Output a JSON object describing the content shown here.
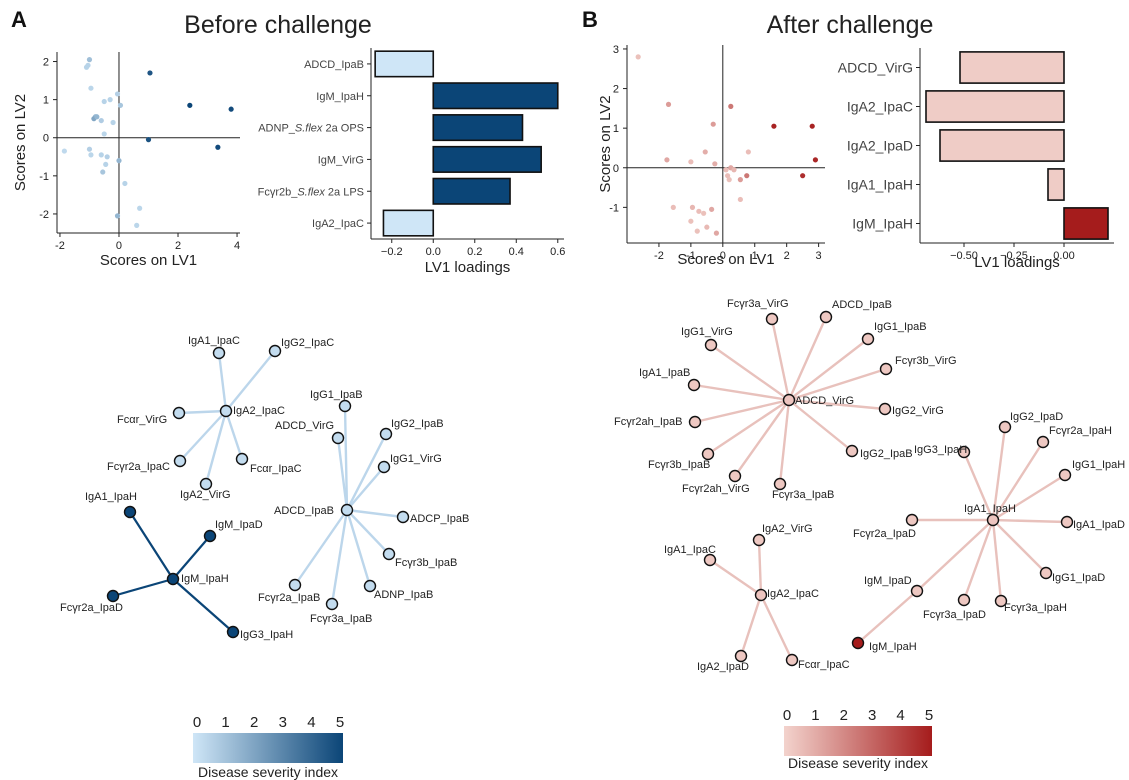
{
  "panels": [
    {
      "letter": "A",
      "title": "Before challenge"
    },
    {
      "letter": "B",
      "title": "After challenge"
    }
  ],
  "chart_data": [
    {
      "id": "scoresA",
      "type": "scatter",
      "panel": "A",
      "xlabel": "Scores on LV1",
      "ylabel": "Scores on LV2",
      "xlim": [
        -2.1,
        4.1
      ],
      "ylim": [
        -2.5,
        2.25
      ],
      "xticks": [
        -2,
        0,
        2,
        4
      ],
      "yticks": [
        -2,
        -1,
        0,
        1,
        2
      ],
      "color_scale": {
        "low": "#cfe6f7",
        "high": "#0b4577",
        "min": 0,
        "max": 5
      },
      "points": [
        {
          "x": -1.0,
          "y": 2.05,
          "s": 1.2
        },
        {
          "x": -1.05,
          "y": 1.9,
          "s": 0.6
        },
        {
          "x": -1.1,
          "y": 1.85,
          "s": 0.6
        },
        {
          "x": -0.95,
          "y": 1.3,
          "s": 0.5
        },
        {
          "x": -0.3,
          "y": 1.0,
          "s": 0.6
        },
        {
          "x": -0.5,
          "y": 0.95,
          "s": 0.6
        },
        {
          "x": -0.05,
          "y": 1.15,
          "s": 0.7
        },
        {
          "x": 0.05,
          "y": 0.85,
          "s": 1.0
        },
        {
          "x": -0.8,
          "y": 0.55,
          "s": 1.4
        },
        {
          "x": -0.85,
          "y": 0.5,
          "s": 2.0
        },
        {
          "x": -0.75,
          "y": 0.55,
          "s": 1.5
        },
        {
          "x": -0.6,
          "y": 0.45,
          "s": 0.8
        },
        {
          "x": -0.2,
          "y": 0.4,
          "s": 0.6
        },
        {
          "x": -0.5,
          "y": 0.1,
          "s": 0.5
        },
        {
          "x": -1.85,
          "y": -0.35,
          "s": 0.4
        },
        {
          "x": -0.95,
          "y": -0.45,
          "s": 0.5
        },
        {
          "x": -1.0,
          "y": -0.3,
          "s": 0.7
        },
        {
          "x": -0.6,
          "y": -0.45,
          "s": 0.6
        },
        {
          "x": -0.4,
          "y": -0.5,
          "s": 0.7
        },
        {
          "x": -0.45,
          "y": -0.7,
          "s": 0.6
        },
        {
          "x": -0.55,
          "y": -0.9,
          "s": 1.0
        },
        {
          "x": 0.0,
          "y": -0.6,
          "s": 1.5
        },
        {
          "x": 0.2,
          "y": -1.2,
          "s": 0.6
        },
        {
          "x": 0.7,
          "y": -1.85,
          "s": 0.5
        },
        {
          "x": 0.6,
          "y": -2.3,
          "s": 0.5
        },
        {
          "x": -0.05,
          "y": -2.05,
          "s": 1.5
        },
        {
          "x": 1.05,
          "y": 1.7,
          "s": 4.5
        },
        {
          "x": 2.4,
          "y": 0.85,
          "s": 5.0
        },
        {
          "x": 3.8,
          "y": 0.75,
          "s": 4.8
        },
        {
          "x": 3.35,
          "y": -0.25,
          "s": 4.8
        },
        {
          "x": 1.0,
          "y": -0.05,
          "s": 4.6
        }
      ]
    },
    {
      "id": "loadA",
      "type": "bar",
      "panel": "A",
      "orientation": "horizontal",
      "xlabel": "LV1 loadings",
      "xlim": [
        -0.3,
        0.63
      ],
      "xticks": [
        -0.2,
        0.0,
        0.2,
        0.4,
        0.6
      ],
      "xtick_labels": [
        "−0.2",
        "0.0",
        "0.2",
        "0.4",
        "0.6"
      ],
      "categories": [
        {
          "pre": "ADCD_IpaB",
          "em": "",
          "post": ""
        },
        {
          "pre": "IgM_IpaH",
          "em": "",
          "post": ""
        },
        {
          "pre": "ADNP_",
          "em": "S.flex",
          "post": " 2a OPS"
        },
        {
          "pre": "IgM_VirG",
          "em": "",
          "post": ""
        },
        {
          "pre": "Fcγr2b_",
          "em": "S.flex",
          "post": " 2a LPS"
        },
        {
          "pre": "IgA2_IpaC",
          "em": "",
          "post": ""
        }
      ],
      "values": [
        -0.28,
        0.6,
        0.43,
        0.52,
        0.37,
        -0.24
      ],
      "colors": {
        "positive": "#0b4577",
        "negative": "#cfe6f7"
      }
    },
    {
      "id": "scoresB",
      "type": "scatter",
      "panel": "B",
      "xlabel": "Scores on LV1",
      "ylabel": "Scores on LV2",
      "xlim": [
        -3.0,
        3.2
      ],
      "ylim": [
        -1.9,
        3.1
      ],
      "xticks": [
        -2,
        -1,
        0,
        1,
        2,
        3
      ],
      "yticks": [
        -1,
        0,
        1,
        2,
        3
      ],
      "color_scale": {
        "low": "#f3d3cd",
        "high": "#a51c1c",
        "min": 0,
        "max": 5
      },
      "points": [
        {
          "x": -2.65,
          "y": 2.8,
          "s": 0.5
        },
        {
          "x": -1.7,
          "y": 1.6,
          "s": 1.5
        },
        {
          "x": -1.75,
          "y": 0.2,
          "s": 1.2
        },
        {
          "x": -1.0,
          "y": 0.15,
          "s": 0.6
        },
        {
          "x": -0.55,
          "y": 0.4,
          "s": 1.0
        },
        {
          "x": -0.3,
          "y": 1.1,
          "s": 1.5
        },
        {
          "x": 0.25,
          "y": 1.55,
          "s": 2.5
        },
        {
          "x": -0.25,
          "y": 0.1,
          "s": 1.0
        },
        {
          "x": 0.1,
          "y": -0.05,
          "s": 0.6
        },
        {
          "x": 0.15,
          "y": -0.2,
          "s": 0.6
        },
        {
          "x": 0.2,
          "y": -0.3,
          "s": 0.5
        },
        {
          "x": 0.25,
          "y": 0.0,
          "s": 1.2
        },
        {
          "x": 0.35,
          "y": -0.05,
          "s": 0.8
        },
        {
          "x": 0.55,
          "y": -0.3,
          "s": 1.5
        },
        {
          "x": 0.75,
          "y": -0.2,
          "s": 2.5
        },
        {
          "x": 0.8,
          "y": 0.4,
          "s": 0.6
        },
        {
          "x": 0.55,
          "y": -0.8,
          "s": 0.6
        },
        {
          "x": -1.55,
          "y": -1.0,
          "s": 0.6
        },
        {
          "x": -0.95,
          "y": -1.0,
          "s": 0.8
        },
        {
          "x": -0.75,
          "y": -1.1,
          "s": 0.6
        },
        {
          "x": -0.6,
          "y": -1.15,
          "s": 0.5
        },
        {
          "x": -0.35,
          "y": -1.05,
          "s": 1.2
        },
        {
          "x": -1.0,
          "y": -1.35,
          "s": 0.5
        },
        {
          "x": -0.8,
          "y": -1.6,
          "s": 0.5
        },
        {
          "x": -0.5,
          "y": -1.5,
          "s": 0.7
        },
        {
          "x": -0.2,
          "y": -1.65,
          "s": 1.2
        },
        {
          "x": 1.6,
          "y": 1.05,
          "s": 4.8
        },
        {
          "x": 2.8,
          "y": 1.05,
          "s": 4.8
        },
        {
          "x": 2.9,
          "y": 0.2,
          "s": 4.7
        },
        {
          "x": 2.5,
          "y": -0.2,
          "s": 4.5
        }
      ]
    },
    {
      "id": "loadB",
      "type": "bar",
      "panel": "B",
      "orientation": "horizontal",
      "xlabel": "LV1 loadings",
      "xlim": [
        -0.72,
        0.25
      ],
      "xticks": [
        -0.5,
        -0.25,
        0.0
      ],
      "xtick_labels": [
        "−0.50",
        "−0.25",
        "0.00"
      ],
      "categories": [
        {
          "pre": "ADCD_VirG",
          "em": "",
          "post": ""
        },
        {
          "pre": "IgA2_IpaC",
          "em": "",
          "post": ""
        },
        {
          "pre": "IgA2_IpaD",
          "em": "",
          "post": ""
        },
        {
          "pre": "IgA1_IpaH",
          "em": "",
          "post": ""
        },
        {
          "pre": "IgM_IpaH",
          "em": "",
          "post": ""
        }
      ],
      "values": [
        -0.52,
        -0.69,
        -0.62,
        -0.08,
        0.22
      ],
      "colors": {
        "positive": "#a51c1c",
        "negative": "#efccc6"
      }
    },
    {
      "id": "netA",
      "type": "network",
      "panel": "A",
      "nodes": [
        {
          "id": "IgA2_IpaC",
          "s": 0.3
        },
        {
          "id": "IgA1_IpaC",
          "s": 0.3
        },
        {
          "id": "IgG2_IpaC",
          "s": 0.3
        },
        {
          "id": "Fcαr_VirG",
          "s": 0.3
        },
        {
          "id": "Fcγr2a_IpaC",
          "s": 0.3
        },
        {
          "id": "IgA2_VirG",
          "s": 0.3
        },
        {
          "id": "Fcαr_IpaC",
          "s": 0.3
        },
        {
          "id": "ADCD_IpaB",
          "s": 0.3
        },
        {
          "id": "IgG1_IpaB",
          "s": 0.3
        },
        {
          "id": "ADCD_VirG",
          "s": 0.3
        },
        {
          "id": "IgG2_IpaB",
          "s": 0.3
        },
        {
          "id": "IgG1_VirG",
          "s": 0.3
        },
        {
          "id": "ADCP_IpaB",
          "s": 0.3
        },
        {
          "id": "Fcγr3b_IpaB",
          "s": 0.3
        },
        {
          "id": "ADNP_IpaB",
          "s": 0.3
        },
        {
          "id": "Fcγr3a_IpaB",
          "s": 0.3
        },
        {
          "id": "Fcγr2a_IpaB",
          "s": 0.3
        },
        {
          "id": "IgM_IpaH",
          "s": 5.0
        },
        {
          "id": "IgA1_IpaH",
          "s": 5.0
        },
        {
          "id": "IgM_IpaD",
          "s": 5.0
        },
        {
          "id": "Fcγr2a_IpaD",
          "s": 5.0
        },
        {
          "id": "IgG3_IpaH",
          "s": 5.0
        }
      ],
      "edges": [
        [
          "IgA2_IpaC",
          "IgA1_IpaC"
        ],
        [
          "IgA2_IpaC",
          "IgG2_IpaC"
        ],
        [
          "IgA2_IpaC",
          "Fcαr_VirG"
        ],
        [
          "IgA2_IpaC",
          "Fcγr2a_IpaC"
        ],
        [
          "IgA2_IpaC",
          "IgA2_VirG"
        ],
        [
          "IgA2_IpaC",
          "Fcαr_IpaC"
        ],
        [
          "ADCD_IpaB",
          "IgG1_IpaB"
        ],
        [
          "ADCD_IpaB",
          "ADCD_VirG"
        ],
        [
          "ADCD_IpaB",
          "IgG2_IpaB"
        ],
        [
          "ADCD_IpaB",
          "IgG1_VirG"
        ],
        [
          "ADCD_IpaB",
          "ADCP_IpaB"
        ],
        [
          "ADCD_IpaB",
          "Fcγr3b_IpaB"
        ],
        [
          "ADCD_IpaB",
          "ADNP_IpaB"
        ],
        [
          "ADCD_IpaB",
          "Fcγr3a_IpaB"
        ],
        [
          "ADCD_IpaB",
          "Fcγr2a_IpaB"
        ],
        [
          "IgM_IpaH",
          "IgA1_IpaH"
        ],
        [
          "IgM_IpaH",
          "IgM_IpaD"
        ],
        [
          "IgM_IpaH",
          "Fcγr2a_IpaD"
        ],
        [
          "IgM_IpaH",
          "IgG3_IpaH"
        ]
      ],
      "edge_colors": {
        "low": "#c5def1",
        "high": "#0b4577"
      }
    },
    {
      "id": "netB",
      "type": "network",
      "panel": "B",
      "nodes": [
        {
          "id": "ADCD_VirG",
          "s": 0.4
        },
        {
          "id": "Fcγr3a_VirG",
          "s": 0.3
        },
        {
          "id": "ADCD_IpaB",
          "s": 0.3
        },
        {
          "id": "IgG1_VirG",
          "s": 0.3
        },
        {
          "id": "IgG1_IpaB",
          "s": 0.3
        },
        {
          "id": "IgA1_IpaB",
          "s": 0.3
        },
        {
          "id": "Fcγr3b_VirG",
          "s": 0.3
        },
        {
          "id": "Fcγr2ah_IpaB",
          "s": 0.3
        },
        {
          "id": "IgG2_VirG",
          "s": 0.3
        },
        {
          "id": "Fcγr3b_IpaB",
          "s": 0.3
        },
        {
          "id": "IgG2_IpaB",
          "s": 0.3
        },
        {
          "id": "Fcγr2ah_VirG",
          "s": 0.3
        },
        {
          "id": "Fcγr3a_IpaB",
          "s": 0.3
        },
        {
          "id": "IgA1_IpaH",
          "s": 0.4
        },
        {
          "id": "IgG2_IpaD",
          "s": 0.3
        },
        {
          "id": "IgG3_IpaH",
          "s": 0.3
        },
        {
          "id": "Fcγr2a_IpaH",
          "s": 0.3
        },
        {
          "id": "IgG1_IpaH",
          "s": 0.3
        },
        {
          "id": "Fcγr2a_IpaD",
          "s": 0.3
        },
        {
          "id": "IgA1_IpaD",
          "s": 0.3
        },
        {
          "id": "IgM_IpaD",
          "s": 0.3
        },
        {
          "id": "IgG1_IpaD",
          "s": 0.3
        },
        {
          "id": "Fcγr3a_IpaD",
          "s": 0.3
        },
        {
          "id": "Fcγr3a_IpaH",
          "s": 0.3
        },
        {
          "id": "IgM_IpaH",
          "s": 5.0
        },
        {
          "id": "IgA2_IpaC",
          "s": 0.4
        },
        {
          "id": "IgA2_VirG",
          "s": 0.3
        },
        {
          "id": "IgA1_IpaC",
          "s": 0.3
        },
        {
          "id": "IgA2_IpaD",
          "s": 0.3
        },
        {
          "id": "Fcαr_IpaC",
          "s": 0.3
        }
      ],
      "edges": [
        [
          "ADCD_VirG",
          "Fcγr3a_VirG"
        ],
        [
          "ADCD_VirG",
          "ADCD_IpaB"
        ],
        [
          "ADCD_VirG",
          "IgG1_VirG"
        ],
        [
          "ADCD_VirG",
          "IgG1_IpaB"
        ],
        [
          "ADCD_VirG",
          "IgA1_IpaB"
        ],
        [
          "ADCD_VirG",
          "Fcγr3b_VirG"
        ],
        [
          "ADCD_VirG",
          "Fcγr2ah_IpaB"
        ],
        [
          "ADCD_VirG",
          "IgG2_VirG"
        ],
        [
          "ADCD_VirG",
          "Fcγr3b_IpaB"
        ],
        [
          "ADCD_VirG",
          "IgG2_IpaB"
        ],
        [
          "ADCD_VirG",
          "Fcγr2ah_VirG"
        ],
        [
          "ADCD_VirG",
          "Fcγr3a_IpaB"
        ],
        [
          "IgA1_IpaH",
          "IgG2_IpaD"
        ],
        [
          "IgA1_IpaH",
          "IgG3_IpaH"
        ],
        [
          "IgA1_IpaH",
          "Fcγr2a_IpaH"
        ],
        [
          "IgA1_IpaH",
          "IgG1_IpaH"
        ],
        [
          "IgA1_IpaH",
          "Fcγr2a_IpaD"
        ],
        [
          "IgA1_IpaH",
          "IgA1_IpaD"
        ],
        [
          "IgA1_IpaH",
          "IgM_IpaD"
        ],
        [
          "IgA1_IpaH",
          "IgG1_IpaD"
        ],
        [
          "IgA1_IpaH",
          "Fcγr3a_IpaD"
        ],
        [
          "IgA1_IpaH",
          "Fcγr3a_IpaH"
        ],
        [
          "IgM_IpaD",
          "IgM_IpaH"
        ],
        [
          "IgA2_IpaC",
          "IgA2_VirG"
        ],
        [
          "IgA2_IpaC",
          "IgA1_IpaC"
        ],
        [
          "IgA2_IpaC",
          "IgA2_IpaD"
        ],
        [
          "IgA2_IpaC",
          "Fcαr_IpaC"
        ]
      ],
      "edge_colors": {
        "low": "#ebcac4",
        "high": "#a51c1c"
      }
    }
  ],
  "colorbars": [
    {
      "panel": "A",
      "title": "Disease severity index",
      "ticks": [
        0,
        1,
        2,
        3,
        4,
        5
      ],
      "low": "#cfe6f7",
      "high": "#0b4577"
    },
    {
      "panel": "B",
      "title": "Disease severity index",
      "ticks": [
        0,
        1,
        2,
        3,
        4,
        5
      ],
      "low": "#f3d3cd",
      "high": "#a51c1c"
    }
  ]
}
